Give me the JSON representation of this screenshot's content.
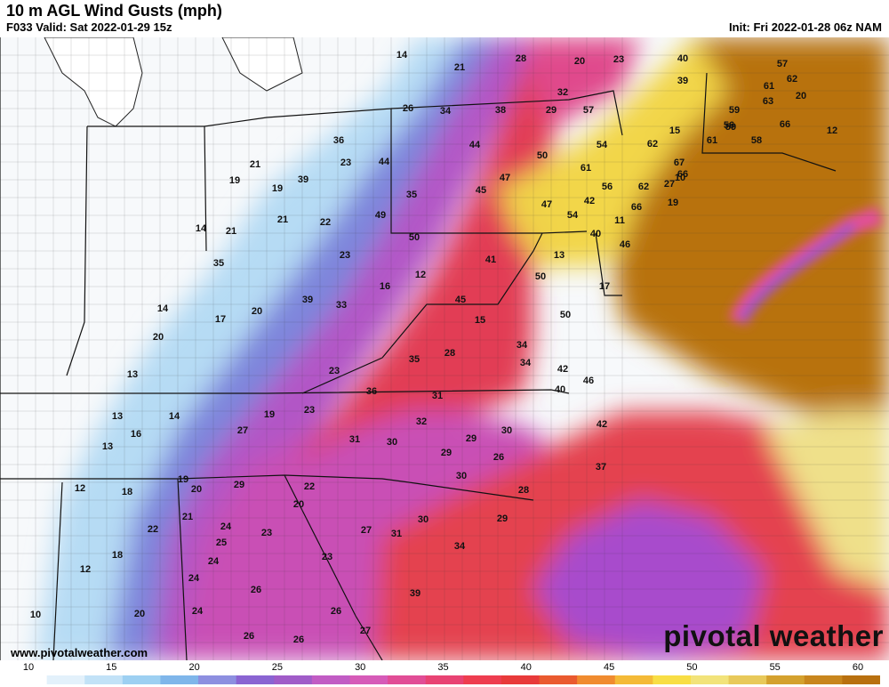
{
  "header": {
    "title": "10 m AGL Wind Gusts (mph)",
    "valid": "F033 Valid: Sat 2022-01-29 15z",
    "init": "Init: Fri 2022-01-28 06z NAM"
  },
  "footer": {
    "url": "www.pivotalweather.com",
    "brand": "pivotal weather"
  },
  "colorbar": {
    "ticks": [
      "10",
      "15",
      "20",
      "25",
      "30",
      "35",
      "40",
      "45",
      "50",
      "55",
      "60"
    ],
    "colors": [
      "#ffffff",
      "#e3f1fb",
      "#c2e2f7",
      "#9dd0f2",
      "#7fb6ea",
      "#8d8fe0",
      "#8a64d2",
      "#a05cc8",
      "#c15cc4",
      "#d65bb8",
      "#e14d96",
      "#e84373",
      "#ee3d4f",
      "#e83a3a",
      "#ea5a2f",
      "#f08b2f",
      "#f4ba37",
      "#f8de45",
      "#f2e37a",
      "#e8c95a",
      "#d4a12e",
      "#c8861d",
      "#b8700f"
    ]
  },
  "map_labels": [
    "14",
    "21",
    "28",
    "20",
    "23",
    "40",
    "57",
    "39",
    "32",
    "62",
    "61",
    "63",
    "59",
    "20",
    "26",
    "34",
    "38",
    "29",
    "57",
    "59",
    "56",
    "15",
    "36",
    "44",
    "54",
    "62",
    "61",
    "58",
    "66",
    "12",
    "21",
    "23",
    "44",
    "50",
    "61",
    "67",
    "66",
    "10",
    "19",
    "19",
    "39",
    "47",
    "56",
    "62",
    "27",
    "35",
    "45",
    "42",
    "47",
    "54",
    "66",
    "19",
    "21",
    "22",
    "49",
    "40",
    "11",
    "14",
    "21",
    "50",
    "46",
    "13",
    "35",
    "41",
    "50",
    "17",
    "23",
    "12",
    "17",
    "20",
    "16",
    "39",
    "33",
    "45",
    "15",
    "50",
    "14",
    "34",
    "28",
    "35",
    "20",
    "34",
    "42",
    "13",
    "23",
    "40",
    "46",
    "36",
    "31",
    "42",
    "19",
    "23",
    "13",
    "14",
    "32",
    "30",
    "31",
    "16",
    "27",
    "30",
    "29",
    "13",
    "29",
    "26",
    "30",
    "37",
    "19",
    "29",
    "20",
    "22",
    "18",
    "28",
    "12",
    "21",
    "20",
    "24",
    "22",
    "30",
    "25",
    "23",
    "27",
    "31",
    "29",
    "24",
    "18",
    "34",
    "12",
    "23",
    "24",
    "26",
    "39",
    "26",
    "10",
    "20",
    "24",
    "27",
    "26",
    "26"
  ]
}
